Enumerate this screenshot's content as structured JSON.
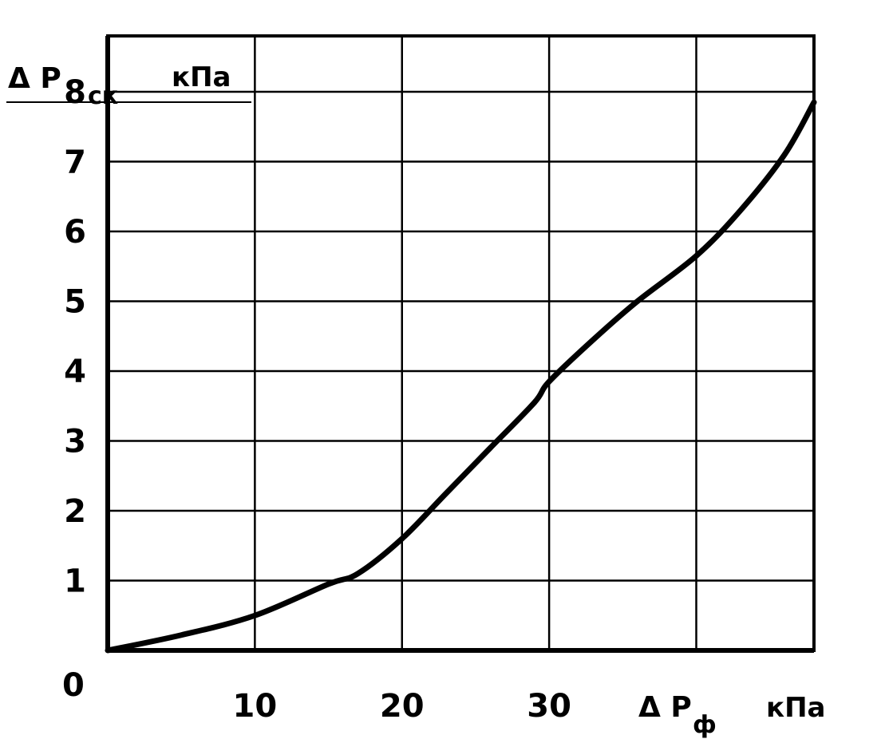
{
  "chart_data": {
    "type": "line",
    "title": "",
    "xlabel": {
      "symbol": "Δ P",
      "subscript": "ф",
      "unit": "кПа"
    },
    "ylabel": {
      "symbol": "Δ P",
      "subscript": "ск",
      "unit": "кПа"
    },
    "origin_label": "0",
    "xlim": [
      0,
      48
    ],
    "ylim": [
      0,
      8.8
    ],
    "x_ticks": [
      10,
      20,
      30,
      40
    ],
    "x_tick_labels": [
      "10",
      "20",
      "30",
      ""
    ],
    "y_ticks": [
      1,
      2,
      3,
      4,
      5,
      6,
      7,
      8
    ],
    "y_tick_labels": [
      "1",
      "2",
      "3",
      "4",
      "5",
      "6",
      "7",
      "8"
    ],
    "grid": true,
    "series": [
      {
        "x": [
          0,
          5,
          10,
          15,
          17,
          20,
          23,
          26,
          29,
          30,
          33,
          36,
          40,
          43,
          46,
          48
        ],
        "y": [
          0,
          0.22,
          0.5,
          0.95,
          1.1,
          1.6,
          2.25,
          2.9,
          3.55,
          3.85,
          4.45,
          5.0,
          5.65,
          6.3,
          7.1,
          7.85
        ]
      }
    ]
  },
  "colors": {
    "ink": "#000000",
    "background": "#ffffff"
  }
}
